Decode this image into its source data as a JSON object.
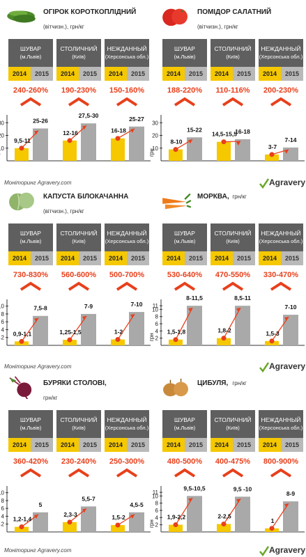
{
  "markets": [
    {
      "name": "ШУВАР",
      "sub": "(м.Львів)"
    },
    {
      "name": "СТОЛИЧНИЙ",
      "sub": "(Київ)"
    },
    {
      "name": "НЕЖДАННЫЙ",
      "sub": "(Херсонська обл.)"
    }
  ],
  "years": [
    "2014",
    "2015"
  ],
  "footnote": "Моніторинг Agravery.com",
  "logo_text": "Agravery",
  "colors": {
    "y2014": "#f5c800",
    "y2015": "#a9a9a9",
    "accent": "#e8401c",
    "header": "#5f5f5f"
  },
  "chart_data": [
    {
      "type": "bar",
      "title": "ОГІРОК КОРОТКОПЛІДНИЙ",
      "subtitle": "(вітчизн.), грн/кг",
      "icon": "cucumber-icon",
      "ylabel": "грн",
      "yticks": [
        10,
        20,
        30
      ],
      "ylim": [
        0,
        34
      ],
      "categories": [
        "ШУВАР",
        "СТОЛИЧНИЙ",
        "НЕЖДАННЫЙ"
      ],
      "series": [
        {
          "name": "2014",
          "values": [
            10,
            16,
            17.7
          ],
          "labels": [
            "9,5-11",
            "12-16",
            "16-18"
          ]
        },
        {
          "name": "2015",
          "values": [
            25.5,
            29.5,
            27
          ],
          "labels": [
            "25-26",
            "27,5-30",
            "25-27"
          ]
        }
      ],
      "growth": [
        "240-260%",
        "190-230%",
        "150-160%"
      ]
    },
    {
      "type": "bar",
      "title": "ПОМІДОР САЛАТНИЙ",
      "subtitle": "(вітчизн.), грн/кг",
      "icon": "tomato-icon",
      "ylabel": "грн",
      "yticks": [
        10,
        20,
        30
      ],
      "ylim": [
        0,
        34
      ],
      "categories": [
        "ШУВАР",
        "СТОЛИЧНИЙ",
        "НЕЖДАННЫЙ"
      ],
      "series": [
        {
          "name": "2014",
          "values": [
            9,
            15,
            5
          ],
          "labels": [
            "8-10",
            "14,5-15,5",
            "3-7"
          ]
        },
        {
          "name": "2015",
          "values": [
            18.5,
            17,
            10.5
          ],
          "labels": [
            "15-22",
            "16-18",
            "7-14"
          ]
        }
      ],
      "growth": [
        "188-220%",
        "110-116%",
        "200-230%"
      ]
    },
    {
      "type": "bar",
      "title": "КАПУСТА БІЛОКАЧАННА",
      "subtitle": "(вітчизн.), грн/кг",
      "icon": "cabbage-icon",
      "ylabel": "грн",
      "yticks": [
        2,
        4,
        6,
        8,
        10
      ],
      "ylim": [
        0,
        11
      ],
      "categories": [
        "ШУВАР",
        "СТОЛИЧНИЙ",
        "НЕЖДАННЫЙ"
      ],
      "series": [
        {
          "name": "2014",
          "values": [
            1,
            1.4,
            1.5
          ],
          "labels": [
            "0,9-1,1",
            "1,25-1,5",
            "1-2"
          ]
        },
        {
          "name": "2015",
          "values": [
            7.5,
            8,
            8.5
          ],
          "labels": [
            "7,5-8",
            "7-9",
            "7-10"
          ]
        }
      ],
      "growth": [
        "730-830%",
        "560-600%",
        "500-700%"
      ]
    },
    {
      "type": "bar",
      "title": "МОРКВА,",
      "subtitle": "грн/кг",
      "icon": "carrot-icon",
      "ylabel": "грн",
      "yticks": [
        2,
        4,
        6,
        8,
        10,
        11
      ],
      "ylim": [
        0,
        12
      ],
      "categories": [
        "ШУВАР",
        "СТОЛИЧНИЙ",
        "НЕЖДАННЫЙ"
      ],
      "series": [
        {
          "name": "2014",
          "values": [
            1.6,
            2,
            1.2
          ],
          "labels": [
            "1,5-1,8",
            "1,8-2",
            "1,5-3"
          ]
        },
        {
          "name": "2015",
          "values": [
            11,
            11,
            8.5
          ],
          "labels": [
            "8-11,5",
            "8,5-11",
            "7-10"
          ]
        }
      ],
      "growth": [
        "530-640%",
        "470-550%",
        "330-470%"
      ]
    },
    {
      "type": "bar",
      "title": "БУРЯКИ СТОЛОВІ,",
      "subtitle": "грн/кг",
      "icon": "beet-icon",
      "ylabel": "грн",
      "yticks": [
        2,
        4,
        6,
        8,
        10
      ],
      "ylim": [
        0,
        11
      ],
      "categories": [
        "ШУВАР",
        "СТОЛИЧНИЙ",
        "НЕЖДАННЫЙ"
      ],
      "series": [
        {
          "name": "2014",
          "values": [
            1.3,
            2.5,
            1.75
          ],
          "labels": [
            "1,2-1,4",
            "2,3-3",
            "1,5-2"
          ]
        },
        {
          "name": "2015",
          "values": [
            5,
            6.5,
            5
          ],
          "labels": [
            "5",
            "5,5-7",
            "4,5-5"
          ]
        }
      ],
      "growth": [
        "360-420%",
        "230-240%",
        "250-300%"
      ]
    },
    {
      "type": "bar",
      "title": "ЦИБУЛЯ,",
      "subtitle": "грн/кг",
      "icon": "onion-icon",
      "ylabel": "грн",
      "yticks": [
        2,
        4,
        6,
        8,
        10,
        11
      ],
      "ylim": [
        0,
        12
      ],
      "categories": [
        "ШУВАР",
        "СТОЛИЧНИЙ",
        "НЕЖДАННЫЙ"
      ],
      "series": [
        {
          "name": "2014",
          "values": [
            2,
            2.2,
            1
          ],
          "labels": [
            "1,9-2,2",
            "2-2,5",
            "1"
          ]
        },
        {
          "name": "2015",
          "values": [
            10,
            9.8,
            8.5
          ],
          "labels": [
            "9,5-10,5",
            "9,5 -10",
            "8-9"
          ]
        }
      ],
      "growth": [
        "480-500%",
        "400-475%",
        "800-900%"
      ]
    }
  ]
}
